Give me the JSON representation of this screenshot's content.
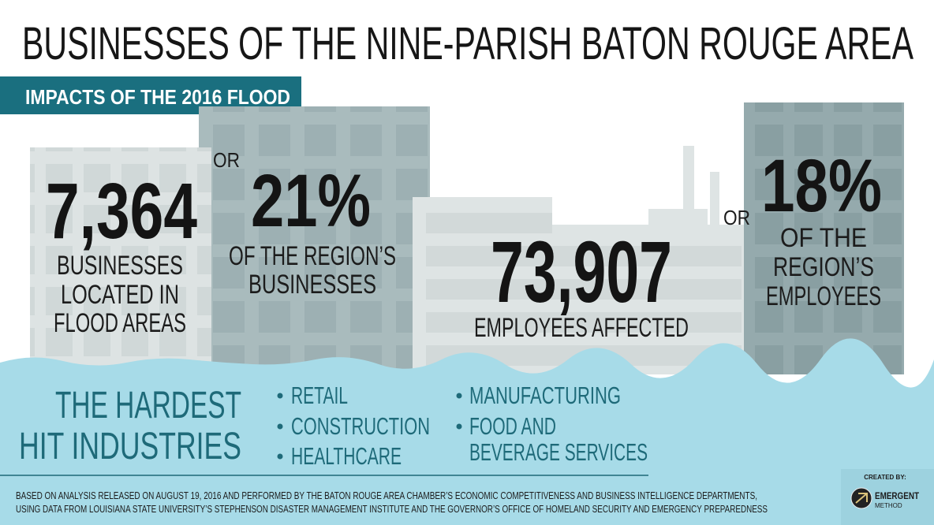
{
  "title": "BUSINESSES OF THE NINE-PARISH BATON ROUGE AREA",
  "subtitle": "IMPACTS OF THE 2016 FLOOD",
  "stats": [
    {
      "value": "7,364",
      "label": [
        "BUSINESSES",
        "LOCATED IN",
        "FLOOD AREAS"
      ]
    },
    {
      "connector": "OR",
      "value": "21%",
      "label": [
        "OF THE REGION’S",
        "BUSINESSES"
      ]
    },
    {
      "value": "73,907",
      "label": [
        "EMPLOYEES AFFECTED"
      ]
    },
    {
      "connector": "OR",
      "value": "18%",
      "label": [
        "OF THE",
        "REGION’S",
        "EMPLOYEES"
      ]
    }
  ],
  "industries": {
    "heading": [
      "THE HARDEST",
      "HIT INDUSTRIES"
    ],
    "columns": [
      [
        [
          "RETAIL"
        ],
        [
          "CONSTRUCTION"
        ],
        [
          "HEALTHCARE"
        ]
      ],
      [
        [
          "MANUFACTURING"
        ],
        [
          "FOOD AND",
          "BEVERAGE SERVICES"
        ]
      ]
    ]
  },
  "footnote": [
    "BASED ON ANALYSIS RELEASED ON AUGUST 19, 2016 AND PERFORMED BY THE BATON ROUGE AREA CHAMBER’S ECONOMIC COMPETITIVENESS AND BUSINESS INTELLIGENCE DEPARTMENTS,",
    "USING DATA FROM LOUISIANA STATE UNIVERSITY’S STEPHENSON DISASTER MANAGEMENT INSTITUTE AND THE GOVERNOR’S OFFICE OF HOMELAND SECURITY AND EMERGENCY PREPAREDNESS"
  ],
  "credit": {
    "label": "CREATED BY:",
    "name": [
      "EMERGENT",
      "METHOD"
    ]
  }
}
